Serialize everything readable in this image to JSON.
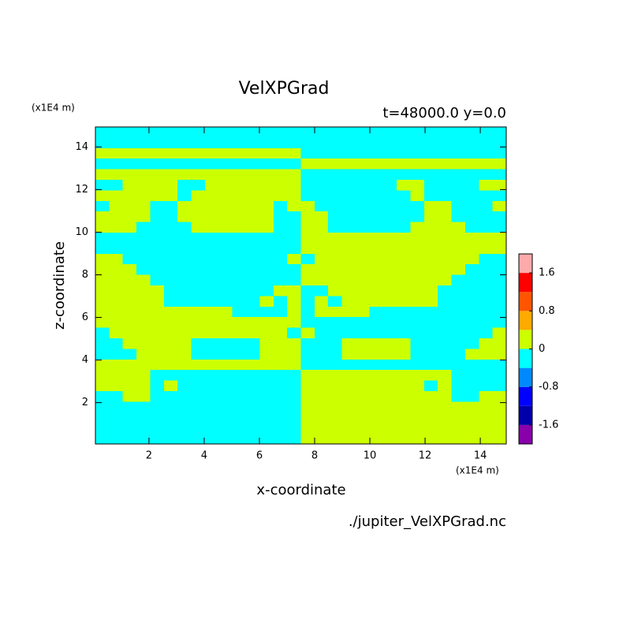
{
  "chart_data": {
    "type": "contour",
    "title": "VelXPGrad",
    "subtitle": "t=48000.0 y=0.0",
    "x_label": "x-coordinate",
    "y_label": "z-coordinate",
    "x_unit": "(x1E4 m)",
    "y_unit": "(x1E4 m)",
    "source": "./jupiter_VelXPGrad.nc",
    "xlim": [
      0.06,
      14.94
    ],
    "ylim": [
      0.06,
      14.94
    ],
    "xticks": [
      2,
      4,
      6,
      8,
      10,
      12,
      14
    ],
    "yticks": [
      2,
      4,
      6,
      8,
      10,
      12,
      14
    ],
    "colorbar": {
      "levels": [
        -2,
        -1.6,
        -1.2,
        -0.8,
        -0.4,
        0,
        0.4,
        0.8,
        1.2,
        1.6,
        2
      ],
      "colors": [
        "#8800aa",
        "#0000aa",
        "#0000ff",
        "#0088ff",
        "#00ffff",
        "#ccff00",
        "#ffaa00",
        "#ff5500",
        "#ff0000",
        "#ffaaaa"
      ],
      "ticks": [
        1.6,
        0.8,
        0,
        -0.8,
        -1.6
      ]
    },
    "values": [
      [
        -0.2,
        -0.2,
        -0.2,
        -0.2,
        -0.2,
        -0.2,
        -0.2,
        -0.2,
        -0.2,
        -0.2,
        -0.2,
        -0.2,
        -0.2,
        -0.2,
        -0.2,
        -0.2,
        -0.2,
        -0.2,
        -0.2,
        -0.2,
        -0.2,
        -0.2,
        -0.2,
        -0.2,
        -0.2,
        -0.2,
        -0.2,
        -0.2,
        -0.2,
        -0.2
      ],
      [
        -0.2,
        -0.2,
        -0.2,
        -0.2,
        -0.2,
        -0.2,
        -0.2,
        -0.2,
        -0.2,
        -0.2,
        -0.2,
        -0.2,
        -0.2,
        -0.2,
        -0.2,
        -0.2,
        -0.2,
        -0.2,
        -0.2,
        -0.2,
        -0.2,
        -0.2,
        -0.2,
        -0.2,
        -0.2,
        -0.2,
        -0.2,
        -0.2,
        -0.2,
        -0.2
      ],
      [
        0.2,
        0.2,
        0.2,
        0.2,
        0.2,
        0.2,
        0.2,
        0.2,
        0.2,
        0.2,
        0.2,
        0.2,
        0.2,
        0.2,
        0.2,
        -0.2,
        -0.2,
        -0.2,
        -0.2,
        -0.2,
        -0.2,
        -0.2,
        -0.2,
        -0.2,
        -0.2,
        -0.2,
        -0.2,
        -0.2,
        -0.2,
        -0.2
      ],
      [
        -0.2,
        -0.2,
        -0.2,
        -0.2,
        -0.2,
        -0.2,
        -0.2,
        -0.2,
        -0.2,
        -0.2,
        -0.2,
        -0.2,
        -0.2,
        -0.2,
        -0.2,
        0.2,
        0.2,
        0.2,
        0.2,
        0.2,
        0.2,
        0.2,
        0.2,
        0.2,
        0.2,
        0.2,
        0.2,
        0.2,
        0.2,
        0.2
      ],
      [
        0.2,
        0.2,
        0.2,
        0.2,
        0.2,
        0.2,
        0.2,
        0.2,
        0.2,
        0.2,
        0.2,
        0.2,
        0.2,
        0.2,
        0.2,
        -0.2,
        -0.2,
        -0.2,
        -0.2,
        -0.2,
        -0.2,
        -0.2,
        -0.2,
        -0.2,
        -0.2,
        -0.2,
        -0.2,
        -0.2,
        -0.2,
        -0.2
      ],
      [
        -0.2,
        -0.2,
        0.2,
        0.2,
        0.2,
        0.2,
        -0.2,
        -0.2,
        0.2,
        0.2,
        0.2,
        0.2,
        0.2,
        0.2,
        0.2,
        -0.2,
        -0.2,
        -0.2,
        -0.2,
        -0.2,
        -0.2,
        -0.2,
        0.2,
        0.2,
        -0.2,
        -0.2,
        -0.2,
        -0.2,
        0.2,
        0.2
      ],
      [
        0.2,
        0.2,
        0.2,
        0.2,
        0.2,
        0.2,
        -0.2,
        0.2,
        0.2,
        0.2,
        0.2,
        0.2,
        0.2,
        0.2,
        0.2,
        -0.2,
        -0.2,
        -0.2,
        -0.2,
        -0.2,
        -0.2,
        -0.2,
        -0.2,
        0.2,
        -0.2,
        -0.2,
        -0.2,
        -0.2,
        -0.2,
        -0.2
      ],
      [
        -0.2,
        0.2,
        0.2,
        0.2,
        -0.2,
        -0.2,
        0.2,
        0.2,
        0.2,
        0.2,
        0.2,
        0.2,
        0.2,
        -0.2,
        0.2,
        0.2,
        -0.2,
        -0.2,
        -0.2,
        -0.2,
        -0.2,
        -0.2,
        -0.2,
        -0.2,
        0.2,
        0.2,
        -0.2,
        -0.2,
        -0.2,
        0.2
      ],
      [
        0.2,
        0.2,
        0.2,
        0.2,
        -0.2,
        -0.2,
        0.2,
        0.2,
        0.2,
        0.2,
        0.2,
        0.2,
        0.2,
        -0.2,
        -0.2,
        0.2,
        0.2,
        -0.2,
        -0.2,
        -0.2,
        -0.2,
        -0.2,
        -0.2,
        -0.2,
        0.2,
        0.2,
        -0.2,
        -0.2,
        -0.2,
        -0.2
      ],
      [
        0.2,
        0.2,
        0.2,
        -0.2,
        -0.2,
        -0.2,
        -0.2,
        0.2,
        0.2,
        0.2,
        0.2,
        0.2,
        0.2,
        -0.2,
        -0.2,
        0.2,
        0.2,
        -0.2,
        -0.2,
        -0.2,
        -0.2,
        -0.2,
        -0.2,
        0.2,
        0.2,
        0.2,
        0.2,
        -0.2,
        -0.2,
        -0.2
      ],
      [
        -0.2,
        -0.2,
        -0.2,
        -0.2,
        -0.2,
        -0.2,
        -0.2,
        -0.2,
        -0.2,
        -0.2,
        -0.2,
        -0.2,
        -0.2,
        -0.2,
        -0.2,
        0.2,
        0.2,
        0.2,
        0.2,
        0.2,
        0.2,
        0.2,
        0.2,
        0.2,
        0.2,
        0.2,
        0.2,
        0.2,
        0.2,
        0.2
      ],
      [
        -0.2,
        -0.2,
        -0.2,
        -0.2,
        -0.2,
        -0.2,
        -0.2,
        -0.2,
        -0.2,
        -0.2,
        -0.2,
        -0.2,
        -0.2,
        -0.2,
        -0.2,
        0.2,
        0.2,
        0.2,
        0.2,
        0.2,
        0.2,
        0.2,
        0.2,
        0.2,
        0.2,
        0.2,
        0.2,
        0.2,
        0.2,
        0.2
      ],
      [
        0.2,
        0.2,
        -0.2,
        -0.2,
        -0.2,
        -0.2,
        -0.2,
        -0.2,
        -0.2,
        -0.2,
        -0.2,
        -0.2,
        -0.2,
        -0.2,
        0.2,
        -0.2,
        0.2,
        0.2,
        0.2,
        0.2,
        0.2,
        0.2,
        0.2,
        0.2,
        0.2,
        0.2,
        0.2,
        0.2,
        -0.2,
        -0.2
      ],
      [
        0.2,
        0.2,
        0.2,
        -0.2,
        -0.2,
        -0.2,
        -0.2,
        -0.2,
        -0.2,
        -0.2,
        -0.2,
        -0.2,
        -0.2,
        -0.2,
        -0.2,
        0.2,
        0.2,
        0.2,
        0.2,
        0.2,
        0.2,
        0.2,
        0.2,
        0.2,
        0.2,
        0.2,
        0.2,
        -0.2,
        -0.2,
        -0.2
      ],
      [
        0.2,
        0.2,
        0.2,
        0.2,
        -0.2,
        -0.2,
        -0.2,
        -0.2,
        -0.2,
        -0.2,
        -0.2,
        -0.2,
        -0.2,
        -0.2,
        -0.2,
        0.2,
        0.2,
        0.2,
        0.2,
        0.2,
        0.2,
        0.2,
        0.2,
        0.2,
        0.2,
        0.2,
        -0.2,
        -0.2,
        -0.2,
        -0.2
      ],
      [
        0.2,
        0.2,
        0.2,
        0.2,
        0.2,
        -0.2,
        -0.2,
        -0.2,
        -0.2,
        -0.2,
        -0.2,
        -0.2,
        -0.2,
        0.2,
        0.2,
        -0.2,
        -0.2,
        0.2,
        0.2,
        0.2,
        0.2,
        0.2,
        0.2,
        0.2,
        0.2,
        -0.2,
        -0.2,
        -0.2,
        -0.2,
        -0.2
      ],
      [
        0.2,
        0.2,
        0.2,
        0.2,
        0.2,
        -0.2,
        -0.2,
        -0.2,
        -0.2,
        -0.2,
        -0.2,
        -0.2,
        0.2,
        -0.2,
        0.2,
        -0.2,
        0.2,
        -0.2,
        0.2,
        0.2,
        0.2,
        0.2,
        0.2,
        0.2,
        0.2,
        -0.2,
        -0.2,
        -0.2,
        -0.2,
        -0.2
      ],
      [
        0.2,
        0.2,
        0.2,
        0.2,
        0.2,
        0.2,
        0.2,
        0.2,
        0.2,
        0.2,
        -0.2,
        -0.2,
        -0.2,
        -0.2,
        0.2,
        -0.2,
        0.2,
        0.2,
        0.2,
        0.2,
        -0.2,
        -0.2,
        -0.2,
        -0.2,
        -0.2,
        -0.2,
        -0.2,
        -0.2,
        -0.2,
        -0.2
      ],
      [
        0.2,
        0.2,
        0.2,
        0.2,
        0.2,
        0.2,
        0.2,
        0.2,
        0.2,
        0.2,
        0.2,
        0.2,
        0.2,
        0.2,
        0.2,
        -0.2,
        -0.2,
        -0.2,
        -0.2,
        -0.2,
        -0.2,
        -0.2,
        -0.2,
        -0.2,
        -0.2,
        -0.2,
        -0.2,
        -0.2,
        -0.2,
        -0.2
      ],
      [
        -0.2,
        0.2,
        0.2,
        0.2,
        0.2,
        0.2,
        0.2,
        0.2,
        0.2,
        0.2,
        0.2,
        0.2,
        0.2,
        0.2,
        -0.2,
        0.2,
        -0.2,
        -0.2,
        -0.2,
        -0.2,
        -0.2,
        -0.2,
        -0.2,
        -0.2,
        -0.2,
        -0.2,
        -0.2,
        -0.2,
        -0.2,
        0.2
      ],
      [
        -0.2,
        -0.2,
        0.2,
        0.2,
        0.2,
        0.2,
        0.2,
        -0.2,
        -0.2,
        -0.2,
        -0.2,
        -0.2,
        0.2,
        0.2,
        0.2,
        -0.2,
        -0.2,
        -0.2,
        0.2,
        0.2,
        0.2,
        0.2,
        0.2,
        -0.2,
        -0.2,
        -0.2,
        -0.2,
        -0.2,
        0.2,
        0.2
      ],
      [
        -0.2,
        -0.2,
        -0.2,
        0.2,
        0.2,
        0.2,
        0.2,
        -0.2,
        -0.2,
        -0.2,
        -0.2,
        -0.2,
        0.2,
        0.2,
        0.2,
        -0.2,
        -0.2,
        -0.2,
        0.2,
        0.2,
        0.2,
        0.2,
        0.2,
        -0.2,
        -0.2,
        -0.2,
        -0.2,
        0.2,
        0.2,
        0.2
      ],
      [
        0.2,
        0.2,
        0.2,
        0.2,
        0.2,
        0.2,
        0.2,
        0.2,
        0.2,
        0.2,
        0.2,
        0.2,
        0.2,
        0.2,
        0.2,
        -0.2,
        -0.2,
        -0.2,
        -0.2,
        -0.2,
        -0.2,
        -0.2,
        -0.2,
        -0.2,
        -0.2,
        -0.2,
        -0.2,
        -0.2,
        -0.2,
        -0.2
      ],
      [
        0.2,
        0.2,
        0.2,
        0.2,
        -0.2,
        -0.2,
        -0.2,
        -0.2,
        -0.2,
        -0.2,
        -0.2,
        -0.2,
        -0.2,
        -0.2,
        -0.2,
        0.2,
        0.2,
        0.2,
        0.2,
        0.2,
        0.2,
        0.2,
        0.2,
        0.2,
        0.2,
        0.2,
        -0.2,
        -0.2,
        -0.2,
        -0.2
      ],
      [
        0.2,
        0.2,
        0.2,
        0.2,
        -0.2,
        0.2,
        -0.2,
        -0.2,
        -0.2,
        -0.2,
        -0.2,
        -0.2,
        -0.2,
        -0.2,
        -0.2,
        0.2,
        0.2,
        0.2,
        0.2,
        0.2,
        0.2,
        0.2,
        0.2,
        0.2,
        -0.2,
        0.2,
        -0.2,
        -0.2,
        -0.2,
        -0.2
      ],
      [
        -0.2,
        -0.2,
        0.2,
        0.2,
        -0.2,
        -0.2,
        -0.2,
        -0.2,
        -0.2,
        -0.2,
        -0.2,
        -0.2,
        -0.2,
        -0.2,
        -0.2,
        0.2,
        0.2,
        0.2,
        0.2,
        0.2,
        0.2,
        0.2,
        0.2,
        0.2,
        0.2,
        0.2,
        -0.2,
        -0.2,
        0.2,
        0.2
      ],
      [
        -0.2,
        -0.2,
        -0.2,
        -0.2,
        -0.2,
        -0.2,
        -0.2,
        -0.2,
        -0.2,
        -0.2,
        -0.2,
        -0.2,
        -0.2,
        -0.2,
        -0.2,
        0.2,
        0.2,
        0.2,
        0.2,
        0.2,
        0.2,
        0.2,
        0.2,
        0.2,
        0.2,
        0.2,
        0.2,
        0.2,
        0.2,
        0.2
      ],
      [
        -0.2,
        -0.2,
        -0.2,
        -0.2,
        -0.2,
        -0.2,
        -0.2,
        -0.2,
        -0.2,
        -0.2,
        -0.2,
        -0.2,
        -0.2,
        -0.2,
        -0.2,
        0.2,
        0.2,
        0.2,
        0.2,
        0.2,
        0.2,
        0.2,
        0.2,
        0.2,
        0.2,
        0.2,
        0.2,
        0.2,
        0.2,
        0.2
      ],
      [
        -0.2,
        -0.2,
        -0.2,
        -0.2,
        -0.2,
        -0.2,
        -0.2,
        -0.2,
        -0.2,
        -0.2,
        -0.2,
        -0.2,
        -0.2,
        -0.2,
        -0.2,
        0.2,
        0.2,
        0.2,
        0.2,
        0.2,
        0.2,
        0.2,
        0.2,
        0.2,
        0.2,
        0.2,
        0.2,
        0.2,
        0.2,
        0.2
      ],
      [
        -0.2,
        -0.2,
        -0.2,
        -0.2,
        -0.2,
        -0.2,
        -0.2,
        -0.2,
        -0.2,
        -0.2,
        -0.2,
        -0.2,
        -0.2,
        -0.2,
        -0.2,
        0.2,
        0.2,
        0.2,
        0.2,
        0.2,
        0.2,
        0.2,
        0.2,
        0.2,
        0.2,
        0.2,
        0.2,
        0.2,
        0.2,
        0.2
      ]
    ]
  }
}
